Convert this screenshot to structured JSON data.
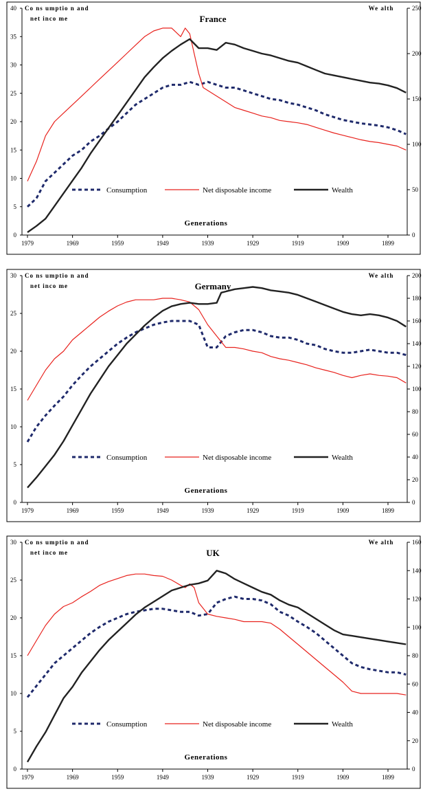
{
  "chart_data": [
    {
      "type": "line",
      "title": "France",
      "ylabel_left": [
        "Co ns umptio n and",
        "net inco me"
      ],
      "ylabel_right": "We alth",
      "xlabel": "Generations",
      "x_ticks": [
        "1979",
        "1969",
        "1959",
        "1949",
        "1939",
        "1929",
        "1919",
        "1909",
        "1899"
      ],
      "y_left_ticks": [
        "0",
        "5",
        "10",
        "15",
        "20",
        "25",
        "30",
        "35",
        "40"
      ],
      "y_right_ticks": [
        "0",
        "50",
        "100",
        "150",
        "200",
        "250"
      ],
      "ylim_left": [
        0,
        40
      ],
      "ylim_right": [
        0,
        250
      ],
      "legend": [
        "Consumption",
        "Net disposable income",
        "Wealth"
      ],
      "series": [
        {
          "name": "Consumption",
          "axis": "left",
          "style": "dashed",
          "color": "#1f2a6b",
          "x": [
            1979,
            1977,
            1975,
            1973,
            1971,
            1969,
            1967,
            1965,
            1963,
            1961,
            1959,
            1957,
            1955,
            1953,
            1951,
            1949,
            1947,
            1945,
            1943,
            1941,
            1939,
            1937,
            1935,
            1933,
            1931,
            1929,
            1927,
            1925,
            1923,
            1921,
            1919,
            1917,
            1915,
            1913,
            1911,
            1909,
            1907,
            1905,
            1903,
            1901,
            1899,
            1897,
            1895
          ],
          "y": [
            5,
            6.5,
            9.5,
            11,
            12.5,
            14,
            15,
            16.5,
            17.5,
            18.8,
            20,
            21.5,
            23,
            24,
            25,
            26,
            26.5,
            26.5,
            27,
            26.5,
            27,
            26.5,
            26,
            26,
            25.5,
            25,
            24.5,
            24,
            23.8,
            23.3,
            23,
            22.5,
            22,
            21.3,
            20.8,
            20.3,
            20,
            19.7,
            19.5,
            19.3,
            19,
            18.5,
            17.8
          ]
        },
        {
          "name": "Net disposable income",
          "axis": "left",
          "style": "solid",
          "color": "#e8211c",
          "x": [
            1979,
            1977,
            1975,
            1973,
            1971,
            1969,
            1967,
            1965,
            1963,
            1961,
            1959,
            1957,
            1955,
            1953,
            1951,
            1949,
            1947,
            1945,
            1944,
            1943,
            1942,
            1941,
            1940,
            1939,
            1937,
            1935,
            1933,
            1931,
            1929,
            1927,
            1925,
            1923,
            1921,
            1919,
            1917,
            1915,
            1913,
            1911,
            1909,
            1907,
            1905,
            1903,
            1901,
            1899,
            1897,
            1895
          ],
          "y": [
            9.5,
            13,
            17.5,
            20,
            21.5,
            23,
            24.5,
            26,
            27.5,
            29,
            30.5,
            32,
            33.5,
            35,
            36,
            36.5,
            36.5,
            35,
            36.5,
            35.5,
            32,
            28.5,
            26,
            25.5,
            24.5,
            23.5,
            22.5,
            22,
            21.5,
            21,
            20.7,
            20.2,
            20,
            19.8,
            19.5,
            19,
            18.5,
            18,
            17.6,
            17.2,
            16.8,
            16.5,
            16.3,
            16,
            15.7,
            15
          ]
        },
        {
          "name": "Wealth",
          "axis": "right",
          "style": "solid",
          "color": "#222222",
          "x": [
            1979,
            1977,
            1975,
            1973,
            1971,
            1969,
            1967,
            1965,
            1963,
            1961,
            1959,
            1957,
            1955,
            1953,
            1951,
            1949,
            1947,
            1945,
            1943,
            1941,
            1939,
            1938,
            1937,
            1935,
            1934,
            1933,
            1931,
            1929,
            1927,
            1925,
            1923,
            1921,
            1919,
            1917,
            1915,
            1913,
            1911,
            1909,
            1907,
            1905,
            1903,
            1901,
            1899,
            1897,
            1895
          ],
          "y": [
            3,
            10,
            18,
            32,
            46,
            60,
            74,
            90,
            104,
            118,
            132,
            146,
            160,
            174,
            185,
            195,
            203,
            210,
            216,
            206,
            206,
            205,
            204,
            212,
            211,
            210,
            206,
            203,
            200,
            198,
            195,
            192,
            190,
            186,
            182,
            178,
            176,
            174,
            172,
            170,
            168,
            167,
            165,
            162,
            157
          ]
        }
      ]
    },
    {
      "type": "line",
      "title": "Germany",
      "ylabel_left": [
        "Co ns umptio n and",
        "net inco me"
      ],
      "ylabel_right": "We alth",
      "xlabel": "Generations",
      "x_ticks": [
        "1979",
        "1969",
        "1959",
        "1949",
        "1939",
        "1929",
        "1919",
        "1909",
        "1899"
      ],
      "y_left_ticks": [
        "0",
        "5",
        "10",
        "15",
        "20",
        "25",
        "30"
      ],
      "y_right_ticks": [
        "0",
        "20",
        "40",
        "60",
        "80",
        "100",
        "120",
        "140",
        "160",
        "180",
        "200"
      ],
      "ylim_left": [
        0,
        30
      ],
      "ylim_right": [
        0,
        200
      ],
      "legend": [
        "Consumption",
        "Net disposable income",
        "Wealth"
      ],
      "series": [
        {
          "name": "Consumption",
          "axis": "left",
          "style": "dashed",
          "color": "#1f2a6b",
          "x": [
            1979,
            1977,
            1975,
            1973,
            1971,
            1969,
            1967,
            1965,
            1963,
            1961,
            1959,
            1957,
            1955,
            1953,
            1951,
            1949,
            1947,
            1945,
            1943,
            1941,
            1940,
            1939,
            1937,
            1935,
            1933,
            1931,
            1929,
            1927,
            1925,
            1923,
            1921,
            1919,
            1917,
            1915,
            1913,
            1911,
            1909,
            1907,
            1905,
            1903,
            1901,
            1899,
            1897,
            1895
          ],
          "y": [
            8,
            10,
            11.5,
            12.8,
            14,
            15.5,
            16.8,
            18,
            19,
            20,
            21,
            21.8,
            22.5,
            23,
            23.5,
            23.8,
            24,
            24,
            24,
            23.5,
            22,
            20.5,
            20.5,
            22,
            22.5,
            22.8,
            22.8,
            22.5,
            22,
            21.8,
            21.8,
            21.5,
            21,
            20.8,
            20.3,
            20,
            19.8,
            19.8,
            20,
            20.2,
            20,
            19.8,
            19.8,
            19.5
          ]
        },
        {
          "name": "Net disposable income",
          "axis": "left",
          "style": "solid",
          "color": "#e8211c",
          "x": [
            1979,
            1977,
            1975,
            1973,
            1971,
            1969,
            1967,
            1965,
            1963,
            1961,
            1959,
            1957,
            1955,
            1953,
            1951,
            1949,
            1947,
            1945,
            1943,
            1941,
            1939,
            1937,
            1935,
            1933,
            1931,
            1929,
            1927,
            1925,
            1923,
            1921,
            1919,
            1917,
            1915,
            1913,
            1911,
            1909,
            1907,
            1905,
            1903,
            1901,
            1899,
            1897,
            1895
          ],
          "y": [
            13.5,
            15.5,
            17.5,
            19,
            20,
            21.5,
            22.5,
            23.5,
            24.5,
            25.3,
            26,
            26.5,
            26.8,
            26.8,
            26.8,
            27,
            27,
            26.8,
            26.5,
            25.5,
            23.5,
            22,
            20.5,
            20.5,
            20.3,
            20,
            19.8,
            19.3,
            19,
            18.8,
            18.5,
            18.2,
            17.8,
            17.5,
            17.2,
            16.8,
            16.5,
            16.8,
            17,
            16.8,
            16.7,
            16.5,
            15.8
          ]
        },
        {
          "name": "Wealth",
          "axis": "right",
          "style": "solid",
          "color": "#222222",
          "x": [
            1979,
            1977,
            1975,
            1973,
            1971,
            1969,
            1967,
            1965,
            1963,
            1961,
            1959,
            1957,
            1955,
            1953,
            1951,
            1949,
            1947,
            1945,
            1943,
            1941,
            1939,
            1937,
            1936,
            1935,
            1933,
            1931,
            1929,
            1927,
            1925,
            1923,
            1921,
            1919,
            1917,
            1915,
            1913,
            1911,
            1909,
            1907,
            1905,
            1903,
            1901,
            1899,
            1897,
            1895
          ],
          "y": [
            13,
            22,
            32,
            42,
            54,
            68,
            82,
            96,
            108,
            120,
            130,
            140,
            148,
            156,
            163,
            169,
            173,
            175,
            176,
            175,
            175,
            176,
            185,
            186,
            188,
            189,
            190,
            189,
            187,
            186,
            185,
            183,
            180,
            177,
            174,
            171,
            168,
            166,
            165,
            166,
            165,
            163,
            160,
            155
          ]
        }
      ]
    },
    {
      "type": "line",
      "title": "UK",
      "ylabel_left": [
        "Co ns umptio n and",
        "net inco me"
      ],
      "ylabel_right": "We alth",
      "xlabel": "Generations",
      "x_ticks": [
        "1979",
        "1969",
        "1959",
        "1949",
        "1939",
        "1929",
        "1919",
        "1909",
        "1899"
      ],
      "y_left_ticks": [
        "0",
        "5",
        "10",
        "15",
        "20",
        "25",
        "30"
      ],
      "y_right_ticks": [
        "0",
        "20",
        "40",
        "60",
        "80",
        "100",
        "120",
        "140",
        "160"
      ],
      "ylim_left": [
        0,
        30
      ],
      "ylim_right": [
        0,
        160
      ],
      "legend": [
        "Consumption",
        "Net disposable income",
        "Wealth"
      ],
      "series": [
        {
          "name": "Consumption",
          "axis": "left",
          "style": "dashed",
          "color": "#1f2a6b",
          "x": [
            1979,
            1977,
            1975,
            1973,
            1971,
            1969,
            1967,
            1965,
            1963,
            1961,
            1959,
            1957,
            1955,
            1953,
            1951,
            1949,
            1947,
            1945,
            1943,
            1941,
            1939,
            1937,
            1935,
            1933,
            1931,
            1929,
            1927,
            1925,
            1923,
            1921,
            1919,
            1917,
            1915,
            1913,
            1911,
            1909,
            1907,
            1905,
            1903,
            1901,
            1899,
            1897,
            1895
          ],
          "y": [
            9.5,
            11,
            12.5,
            14,
            15,
            16,
            17,
            18,
            18.8,
            19.5,
            20,
            20.5,
            20.8,
            21,
            21.2,
            21.2,
            21,
            20.8,
            20.8,
            20.3,
            20.5,
            22,
            22.5,
            22.8,
            22.5,
            22.5,
            22.3,
            21.8,
            20.8,
            20.3,
            19.5,
            18.8,
            18,
            17,
            16,
            15,
            14,
            13.5,
            13.2,
            13,
            12.8,
            12.8,
            12.5
          ]
        },
        {
          "name": "Net disposable income",
          "axis": "left",
          "style": "solid",
          "color": "#e8211c",
          "x": [
            1979,
            1977,
            1975,
            1973,
            1971,
            1969,
            1967,
            1965,
            1963,
            1961,
            1959,
            1957,
            1955,
            1953,
            1951,
            1949,
            1947,
            1945,
            1944,
            1943,
            1942,
            1941,
            1939,
            1937,
            1935,
            1933,
            1931,
            1929,
            1927,
            1925,
            1923,
            1921,
            1919,
            1917,
            1915,
            1913,
            1911,
            1909,
            1907,
            1905,
            1903,
            1901,
            1899,
            1897,
            1895
          ],
          "y": [
            15,
            17,
            19,
            20.5,
            21.5,
            22,
            22.8,
            23.5,
            24.3,
            24.8,
            25.2,
            25.6,
            25.8,
            25.8,
            25.6,
            25.5,
            25,
            24.3,
            24,
            24.5,
            24,
            22,
            20.5,
            20.2,
            20,
            19.8,
            19.5,
            19.5,
            19.5,
            19.3,
            18.5,
            17.5,
            16.5,
            15.5,
            14.5,
            13.5,
            12.5,
            11.5,
            10.3,
            10,
            10,
            10,
            10,
            10,
            9.8
          ]
        },
        {
          "name": "Wealth",
          "axis": "right",
          "style": "solid",
          "color": "#222222",
          "x": [
            1979,
            1977,
            1975,
            1973,
            1971,
            1969,
            1967,
            1965,
            1963,
            1961,
            1959,
            1957,
            1955,
            1953,
            1951,
            1949,
            1947,
            1945,
            1943,
            1941,
            1939,
            1937,
            1936,
            1935,
            1933,
            1931,
            1929,
            1927,
            1925,
            1923,
            1921,
            1919,
            1917,
            1915,
            1913,
            1911,
            1909,
            1907,
            1905,
            1903,
            1901,
            1899,
            1897,
            1895
          ],
          "y": [
            5,
            16,
            26,
            38,
            50,
            58,
            68,
            76,
            84,
            91,
            97,
            103,
            109,
            114,
            118,
            122,
            126,
            128,
            130,
            131,
            133,
            140,
            139,
            138,
            134,
            131,
            128,
            125,
            123,
            119,
            116,
            114,
            110,
            106,
            102,
            98,
            95,
            94,
            93,
            92,
            91,
            90,
            89,
            88
          ]
        }
      ]
    }
  ]
}
